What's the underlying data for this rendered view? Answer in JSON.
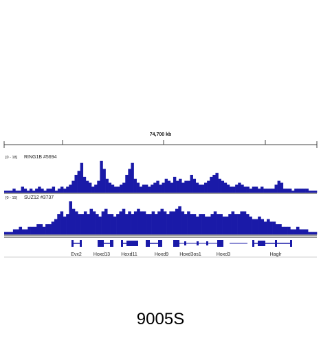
{
  "ruler": {
    "center_label": "74,700 kb"
  },
  "tracks": [
    {
      "range_label": "[0 - 18]",
      "name": "RING1B #5694",
      "color": "#1a1aa8",
      "ymax": 18
    },
    {
      "range_label": "[0 - 15]",
      "name": "SUZ12 #3737",
      "color": "#1a1aa8",
      "ymax": 15
    }
  ],
  "genes": [
    "Evx2",
    "Hoxd13",
    "Hoxd11",
    "Hoxd9",
    "Hoxd3os1",
    "Hoxd3",
    "Haglr"
  ],
  "caption": "9005S",
  "chart_data": [
    {
      "type": "area",
      "title": "",
      "series_name": "RING1B #5694",
      "y_range": [
        0,
        18
      ],
      "values": [
        1,
        1,
        1,
        2,
        1,
        1,
        3,
        2,
        1,
        2,
        1,
        2,
        3,
        2,
        1,
        2,
        2,
        3,
        1,
        2,
        3,
        2,
        3,
        4,
        6,
        9,
        11,
        15,
        8,
        6,
        5,
        3,
        4,
        6,
        16,
        12,
        7,
        5,
        4,
        3,
        3,
        4,
        5,
        9,
        12,
        15,
        7,
        5,
        3,
        4,
        4,
        3,
        4,
        5,
        6,
        4,
        5,
        7,
        6,
        5,
        8,
        6,
        7,
        5,
        6,
        6,
        9,
        7,
        5,
        4,
        4,
        5,
        6,
        8,
        9,
        10,
        7,
        6,
        5,
        4,
        3,
        3,
        4,
        5,
        4,
        3,
        3,
        2,
        3,
        3,
        2,
        3,
        2,
        2,
        2,
        2,
        4,
        6,
        5,
        2,
        2,
        2,
        1,
        2,
        2,
        2,
        2,
        2,
        1,
        1,
        1
      ]
    },
    {
      "type": "area",
      "title": "",
      "series_name": "SUZ12 #3737",
      "y_range": [
        0,
        15
      ],
      "values": [
        1,
        1,
        1,
        2,
        2,
        3,
        2,
        2,
        3,
        3,
        3,
        4,
        4,
        3,
        4,
        4,
        5,
        6,
        8,
        9,
        7,
        8,
        13,
        10,
        9,
        8,
        8,
        9,
        8,
        10,
        9,
        8,
        7,
        9,
        10,
        8,
        8,
        7,
        8,
        9,
        10,
        8,
        9,
        8,
        9,
        10,
        9,
        9,
        8,
        8,
        9,
        8,
        9,
        10,
        9,
        8,
        9,
        9,
        10,
        11,
        9,
        8,
        9,
        8,
        8,
        7,
        8,
        8,
        7,
        7,
        8,
        9,
        8,
        8,
        7,
        7,
        8,
        9,
        8,
        8,
        9,
        9,
        8,
        7,
        6,
        6,
        7,
        6,
        5,
        6,
        5,
        5,
        4,
        4,
        3,
        3,
        3,
        2,
        2,
        3,
        2,
        2,
        2,
        1,
        1,
        1
      ]
    }
  ]
}
